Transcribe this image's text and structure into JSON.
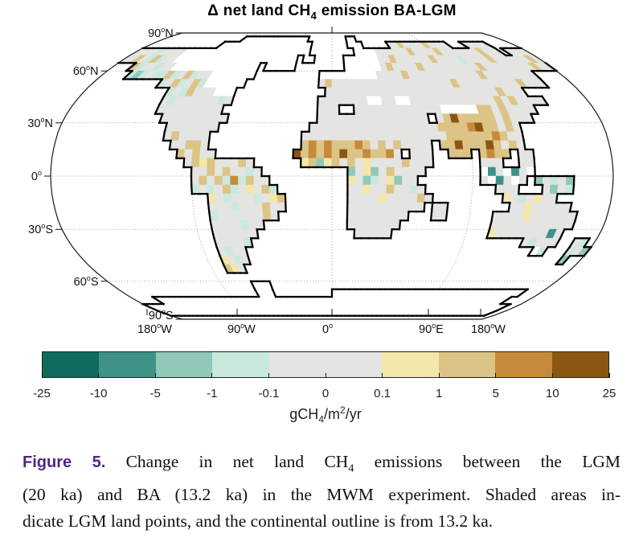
{
  "title": {
    "pre": "Δ net land CH",
    "sub": "4",
    "post": " emission BA-LGM"
  },
  "colorbar": {
    "unit": {
      "pre": "gCH",
      "sub": "4",
      "mid": "/m",
      "sup": "2",
      "post": "/yr"
    }
  },
  "caption": {
    "label": "Figure 5.",
    "label_color": "#522583",
    "line1_pre": " Change in net land CH",
    "line1_sub": "4",
    "line1_post": " emissions between the LGM",
    "line2": "(20 ka) and BA (13.2 ka) in the MWM experiment. Shaded areas in-",
    "line3": "dicate LGM land points, and the continental outline is from 13.2 ka."
  },
  "chart_data": {
    "type": "heatmap",
    "title": "Δ net land CH4 emission BA-LGM",
    "projection": "robinson",
    "units": "gCH4/m2/yr",
    "description": "Change in net land CH4 emissions between the LGM (20 ka) and BA (13.2 ka) in the MWM experiment; shaded cells are LGM land points, continental outline from 13.2 ka",
    "colorbar": {
      "tick_labels": [
        "-25",
        "-10",
        "-5",
        "-1",
        "-0.1",
        "0",
        "0.1",
        "1",
        "5",
        "10",
        "25"
      ],
      "segment_colors": [
        "#0f6b5e",
        "#3f9386",
        "#90c8ba",
        "#c9e9de",
        "#e4e4e2",
        "#e4e4e2",
        "#f3e7a9",
        "#dcc486",
        "#c68a3a",
        "#8a5713"
      ]
    },
    "lat_ticks": [
      {
        "label": "90",
        "hemi": "N",
        "lat": 90
      },
      {
        "label": "60",
        "hemi": "N",
        "lat": 60
      },
      {
        "label": "30",
        "hemi": "N",
        "lat": 30
      },
      {
        "label": "0",
        "hemi": "",
        "lat": 0
      },
      {
        "label": "30",
        "hemi": "S",
        "lat": -30
      },
      {
        "label": "60",
        "hemi": "S",
        "lat": -60
      },
      {
        "label": "90",
        "hemi": "S",
        "lat": -90
      }
    ],
    "lon_ticks": [
      {
        "label": "180",
        "hemi": "W",
        "lon": -180
      },
      {
        "label": "90",
        "hemi": "W",
        "lon": -90
      },
      {
        "label": "0",
        "hemi": "",
        "lon": 0
      },
      {
        "label": "90",
        "hemi": "E",
        "lon": 90
      },
      {
        "label": "180",
        "hemi": "W",
        "lon": 180
      }
    ],
    "grid": {
      "cell_deg": 5,
      "origin": "north-west corner (90N, 180W), rows go south, columns go east",
      "key": {
        ".": "ocean (not drawn)",
        "w": "white land: ice sheet / lake / no value (inside outline)",
        "e": "-25 to -10 gCH4/m2/yr",
        "d": "-10 to -5 gCH4/m2/yr",
        "m": "-5 to -1 gCH4/m2/yr",
        "c": "-1 to -0.1 gCH4/m2/yr",
        "g": "-0.1 to 0.1 gCH4/m2/yr",
        "y": "0.1 to 1 gCH4/m2/yr",
        "t": "1 to 5 gCH4/m2/yr",
        "o": "5 to 10 gCH4/m2/yr",
        "b": "10 to 25 gCH4/m2/yr"
      },
      "palette": {
        "e": "#0f6b5e",
        "d": "#3f9386",
        "m": "#90c8ba",
        "c": "#c9e9de",
        "g": "#e4e4e2",
        "y": "#f3e7a9",
        "t": "#dcc486",
        "o": "#c68a3a",
        "b": "#8a5713",
        "w": "#ffffff"
      },
      "rows": [
        "........................................................................",
        ".................wwwwwwwwwwwwww........ww...............................",
        "..............wwwwwwwwwwwwwwwwww.......www.....ggtggggtgggg...ggggg.....",
        "ggggcggggwwwwwwwwwwwwwwwwwwwwwww........wwwwggggggtggggtgggggggtggg.gggg",
        "ggtgctcggwwwwwwwwwwwwwwwwwwwww.ww.....wwwwwwggtggggggtggggcggggtggggggtg",
        "...tcggcggwwwwwwwwwwwwww.wwwww........wwwwwwgtggggtgggggggggtggggggggtgg",
        "....cmcgcctcgtcggwwwwwww..........wwwwwwwwwggggtgggggggggggtgggggggg....",
        "..........cgtcgtcwwwwww...........gtggggggggggggggggggtgggggggggtggg....",
        "............cgctgggwww.............gggggggggggggggggggggggggtggg........",
        "............gcggggggcg............gggggggwwggwwggggggggggggtgtgggg......",
        "............ggggggggg.............ggg..ggggggggggggwwwwwttgtgggg.......",
        ".............ggggggggg............ggggggggggggggg.gtbtttttgtggg.........",
        "..............ggggggg............gggggggggggggggggttttobttgtg...........",
        "..............gtgggg............gggggggggggggggggggttttttotgg............",
        "...............ggttg............tototttotgtgtgggg.ttbtttbtgtg...........",
        "................tgtgg..........btototbttottog.ggg..ttt.tott.gg..........",
        ".................gtytgggtg......ytmytgtgyggggtggg......ggg..gg..........",
        "..................ggtgtggcg...........mgymgtgggg.......wdgwdgw..........",
        "..................gtgtcoctgg..........ygmcgymgg........gwdgwg.mgcgm.....",
        "..................cgcgtcgygtc.........ggyggtggcg.........ggg...gmgc.....",
        "....................ygcgggcgyt........ggggyggggtg.........ygcgygg.......",
        "....................gggcgggtgg........gggggggggg.gg........ggyggggg.....",
        "....................cggggggtg.........gggggggg...gg......ggggygggggg....",
        "....................ggggcgg...........ggggggg............ggggggggggg....",
        "....................gggggg.............ggggg.............ygggggggdg.....",
        "....................ggggc.....................................gcggg..gc.",
        "....................gcgg........................................wc...cgm",
        "....................ygcg.............................................m..",
        "....................tyg.................................................",
        "........................................................................",
        ".......................www..............................................",
        ".......................www..........wwwwwwwwwwwwwwwwwwwwwwwwwwwwwwwww...",
        "....wwwwwwwwwwwwwwwwwwwwwwwwwwwwwwwwwwwwwwwwwwwwwwwwwwwwwwwwwwwwwwww..",
        "wwwwwwwwwwwwwwwwwwwwwwwwwwwwwwwwwwwwwwwwwwwwwwwwwwwwwwwwwwwwwwwwwwwwww",
        "wwwwwwwwwwwwwwwwwwwwwwwwwwwwwwwwwwwwwwwwwwwwwwwwwwwwwwwwwwwwwwwwwwwwww",
        "........................................................................"
      ]
    }
  }
}
